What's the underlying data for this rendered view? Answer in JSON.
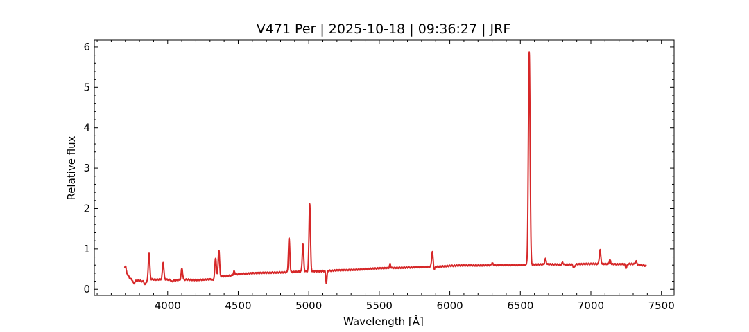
{
  "chart_data": {
    "type": "line",
    "title": "V471 Per | 2025-10-18 | 09:36:27 | JRF",
    "xlabel": "Wavelength [Å]",
    "ylabel": "Relative flux",
    "xlim": [
      3480,
      7590
    ],
    "ylim": [
      -0.15,
      6.17
    ],
    "x_ticks": [
      4000,
      4500,
      5000,
      5500,
      6000,
      6500,
      7000,
      7500
    ],
    "y_ticks": [
      0,
      1,
      2,
      3,
      4,
      5,
      6
    ],
    "x_minor_step": 100,
    "y_minor_step": 0.2,
    "grid": false,
    "legend": "none",
    "series": [
      {
        "color": "#d62728",
        "continuum": [
          [
            3695,
            0.5
          ],
          [
            3730,
            0.28
          ],
          [
            3760,
            0.2
          ],
          [
            3800,
            0.22
          ],
          [
            3840,
            0.18
          ],
          [
            3880,
            0.25
          ],
          [
            3920,
            0.24
          ],
          [
            3960,
            0.25
          ],
          [
            4000,
            0.24
          ],
          [
            4050,
            0.22
          ],
          [
            4100,
            0.24
          ],
          [
            4150,
            0.24
          ],
          [
            4200,
            0.23
          ],
          [
            4250,
            0.24
          ],
          [
            4310,
            0.25
          ],
          [
            4340,
            0.3
          ],
          [
            4380,
            0.32
          ],
          [
            4450,
            0.34
          ],
          [
            4500,
            0.38
          ],
          [
            4600,
            0.4
          ],
          [
            4700,
            0.41
          ],
          [
            4800,
            0.42
          ],
          [
            4900,
            0.43
          ],
          [
            5000,
            0.45
          ],
          [
            5100,
            0.45
          ],
          [
            5200,
            0.47
          ],
          [
            5300,
            0.48
          ],
          [
            5400,
            0.5
          ],
          [
            5500,
            0.52
          ],
          [
            5600,
            0.53
          ],
          [
            5700,
            0.54
          ],
          [
            5800,
            0.55
          ],
          [
            5900,
            0.56
          ],
          [
            6000,
            0.58
          ],
          [
            6100,
            0.59
          ],
          [
            6200,
            0.59
          ],
          [
            6300,
            0.6
          ],
          [
            6400,
            0.6
          ],
          [
            6500,
            0.6
          ],
          [
            6600,
            0.61
          ],
          [
            6700,
            0.62
          ],
          [
            6800,
            0.61
          ],
          [
            6900,
            0.62
          ],
          [
            7000,
            0.63
          ],
          [
            7100,
            0.63
          ],
          [
            7200,
            0.62
          ],
          [
            7300,
            0.63
          ],
          [
            7395,
            0.58
          ]
        ],
        "emission_lines": [
          {
            "wavelength": 3701,
            "amplitude": 0.12,
            "width": 4
          },
          {
            "wavelength": 3868,
            "amplitude": 0.68,
            "width": 5
          },
          {
            "wavelength": 3968,
            "amplitude": 0.43,
            "width": 5
          },
          {
            "wavelength": 4101,
            "amplitude": 0.28,
            "width": 5
          },
          {
            "wavelength": 4340,
            "amplitude": 0.48,
            "width": 5
          },
          {
            "wavelength": 4363,
            "amplitude": 0.66,
            "width": 5
          },
          {
            "wavelength": 4471,
            "amplitude": 0.09,
            "width": 5
          },
          {
            "wavelength": 4861,
            "amplitude": 0.83,
            "width": 5
          },
          {
            "wavelength": 4959,
            "amplitude": 0.67,
            "width": 5
          },
          {
            "wavelength": 5007,
            "amplitude": 1.68,
            "width": 5
          },
          {
            "wavelength": 5577,
            "amplitude": 0.1,
            "width": 4
          },
          {
            "wavelength": 5876,
            "amplitude": 0.37,
            "width": 5
          },
          {
            "wavelength": 6300,
            "amplitude": 0.05,
            "width": 5
          },
          {
            "wavelength": 6563,
            "amplitude": 5.27,
            "width": 6
          },
          {
            "wavelength": 6678,
            "amplitude": 0.13,
            "width": 5
          },
          {
            "wavelength": 6800,
            "amplitude": 0.05,
            "width": 5
          },
          {
            "wavelength": 7065,
            "amplitude": 0.35,
            "width": 5
          },
          {
            "wavelength": 7135,
            "amplitude": 0.1,
            "width": 5
          },
          {
            "wavelength": 7320,
            "amplitude": 0.08,
            "width": 5
          }
        ],
        "absorption_lines": [
          {
            "wavelength": 3760,
            "depth": 0.06,
            "width": 5
          },
          {
            "wavelength": 3840,
            "depth": 0.06,
            "width": 5
          },
          {
            "wavelength": 4030,
            "depth": 0.04,
            "width": 5
          },
          {
            "wavelength": 4320,
            "depth": 0.04,
            "width": 5
          },
          {
            "wavelength": 5125,
            "depth": 0.3,
            "width": 4
          },
          {
            "wavelength": 5890,
            "depth": 0.06,
            "width": 5
          },
          {
            "wavelength": 6880,
            "depth": 0.08,
            "width": 6
          },
          {
            "wavelength": 7250,
            "depth": 0.1,
            "width": 5
          }
        ]
      }
    ]
  }
}
